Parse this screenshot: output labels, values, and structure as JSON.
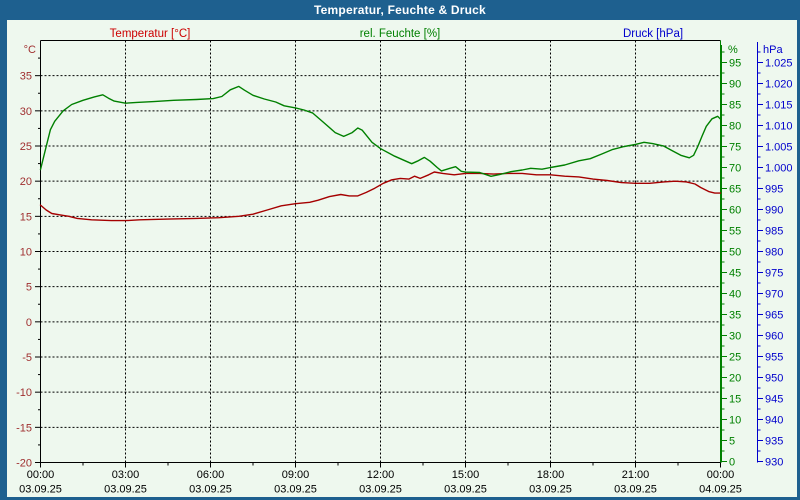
{
  "window": {
    "title": "Temperatur, Feuchte & Druck"
  },
  "header": {
    "temperature_label": "Temperatur [°C]",
    "humidity_label": "rel. Feuchte [%]",
    "pressure_label": "Druck [hPa]"
  },
  "colors": {
    "titlebar_bg": "#1e608f",
    "titlebar_text": "#ffffff",
    "window_bg": "#eef8ee",
    "frame": "#1e608f",
    "grid": "#000000",
    "axis_text": "#000000",
    "temperature": "#a50000",
    "temperature_header": "#cc0000",
    "temperature_ticks": "#a03030",
    "humidity": "#008000",
    "pressure": "#0000cc"
  },
  "axes": {
    "temperature": {
      "unit": "°C",
      "range": [
        -20,
        40
      ],
      "tick_values": [
        35,
        30,
        25,
        20,
        15,
        10,
        5,
        0,
        -5,
        -10,
        -15,
        -20
      ]
    },
    "humidity": {
      "unit": "%",
      "range": [
        0,
        100
      ],
      "tick_values": [
        95,
        90,
        85,
        80,
        75,
        70,
        65,
        60,
        55,
        50,
        45,
        40,
        35,
        30,
        25,
        20,
        15,
        10,
        5,
        0
      ]
    },
    "pressure": {
      "unit": "hPa",
      "range": [
        930,
        1030
      ],
      "tick_labels": [
        "1.025",
        "1.020",
        "1.015",
        "1.010",
        "1.005",
        "1.000",
        "995",
        "990",
        "985",
        "980",
        "975",
        "970",
        "965",
        "960",
        "955",
        "950",
        "945",
        "940",
        "935",
        "930"
      ],
      "tick_values": [
        1025,
        1020,
        1015,
        1010,
        1005,
        1000,
        995,
        990,
        985,
        980,
        975,
        970,
        965,
        960,
        955,
        950,
        945,
        940,
        935,
        930
      ]
    },
    "time": {
      "tick_times": [
        "00:00",
        "03:00",
        "06:00",
        "09:00",
        "12:00",
        "15:00",
        "18:00",
        "21:00",
        "00:00"
      ],
      "tick_dates": [
        "03.09.25",
        "03.09.25",
        "03.09.25",
        "03.09.25",
        "03.09.25",
        "03.09.25",
        "03.09.25",
        "03.09.25",
        "04.09.25"
      ]
    }
  },
  "chart_data": {
    "type": "line",
    "title": "Temperatur, Feuchte & Druck",
    "x_unit": "hours",
    "x_range": [
      0,
      24
    ],
    "x_tick_interval_hours": 3,
    "grid": true,
    "series": [
      {
        "id": "temperatur",
        "name": "Temperatur",
        "unit": "°C",
        "y_axis": "temperature",
        "axis_range": [
          -20,
          40
        ],
        "color": "#a50000",
        "points": [
          [
            0,
            16.6
          ],
          [
            0.2,
            15.9
          ],
          [
            0.4,
            15.4
          ],
          [
            0.7,
            15.2
          ],
          [
            1,
            15.0
          ],
          [
            1.3,
            14.7
          ],
          [
            1.8,
            14.5
          ],
          [
            2.5,
            14.4
          ],
          [
            3,
            14.4
          ],
          [
            3.5,
            14.5
          ],
          [
            4.5,
            14.6
          ],
          [
            5.5,
            14.7
          ],
          [
            6.3,
            14.8
          ],
          [
            7,
            15.0
          ],
          [
            7.5,
            15.3
          ],
          [
            8,
            15.9
          ],
          [
            8.5,
            16.5
          ],
          [
            9,
            16.8
          ],
          [
            9.5,
            17.0
          ],
          [
            9.8,
            17.3
          ],
          [
            10.2,
            17.8
          ],
          [
            10.6,
            18.1
          ],
          [
            10.9,
            17.9
          ],
          [
            11.2,
            17.9
          ],
          [
            11.5,
            18.4
          ],
          [
            11.8,
            19.0
          ],
          [
            12.1,
            19.7
          ],
          [
            12.4,
            20.2
          ],
          [
            12.7,
            20.4
          ],
          [
            13,
            20.3
          ],
          [
            13.2,
            20.7
          ],
          [
            13.4,
            20.4
          ],
          [
            13.7,
            20.9
          ],
          [
            13.9,
            21.3
          ],
          [
            14.2,
            21.1
          ],
          [
            14.6,
            20.9
          ],
          [
            15,
            21.1
          ],
          [
            15.5,
            21.1
          ],
          [
            16,
            21.0
          ],
          [
            16.5,
            21.1
          ],
          [
            17,
            21.1
          ],
          [
            17.5,
            20.9
          ],
          [
            18,
            20.9
          ],
          [
            18.5,
            20.7
          ],
          [
            19,
            20.6
          ],
          [
            19.5,
            20.3
          ],
          [
            20,
            20.1
          ],
          [
            20.5,
            19.8
          ],
          [
            21,
            19.7
          ],
          [
            21.5,
            19.7
          ],
          [
            22,
            19.9
          ],
          [
            22.4,
            20.0
          ],
          [
            22.8,
            19.9
          ],
          [
            23.1,
            19.6
          ],
          [
            23.3,
            19.1
          ],
          [
            23.6,
            18.5
          ],
          [
            23.8,
            18.3
          ],
          [
            24,
            18.3
          ]
        ]
      },
      {
        "id": "feuchte",
        "name": "rel. Feuchte",
        "unit": "%",
        "y_axis": "humidity",
        "axis_range": [
          0,
          100
        ],
        "color": "#008000",
        "points": [
          [
            0,
            69.5
          ],
          [
            0.2,
            75
          ],
          [
            0.35,
            79
          ],
          [
            0.5,
            81
          ],
          [
            0.8,
            83.5
          ],
          [
            1.1,
            85
          ],
          [
            1.5,
            86
          ],
          [
            1.9,
            86.8
          ],
          [
            2.2,
            87.3
          ],
          [
            2.4,
            86.5
          ],
          [
            2.6,
            85.8
          ],
          [
            3,
            85.3
          ],
          [
            3.4,
            85.5
          ],
          [
            4,
            85.7
          ],
          [
            4.7,
            86
          ],
          [
            5.5,
            86.2
          ],
          [
            6.1,
            86.4
          ],
          [
            6.4,
            86.9
          ],
          [
            6.7,
            88.5
          ],
          [
            7,
            89.3
          ],
          [
            7.2,
            88.4
          ],
          [
            7.5,
            87.2
          ],
          [
            7.9,
            86.3
          ],
          [
            8.3,
            85.6
          ],
          [
            8.6,
            84.7
          ],
          [
            9,
            84.2
          ],
          [
            9.3,
            83.7
          ],
          [
            9.6,
            83
          ],
          [
            10,
            80.7
          ],
          [
            10.4,
            78.3
          ],
          [
            10.7,
            77.4
          ],
          [
            11,
            78.3
          ],
          [
            11.2,
            79.4
          ],
          [
            11.35,
            78.9
          ],
          [
            11.7,
            76
          ],
          [
            12,
            74.5
          ],
          [
            12.5,
            72.7
          ],
          [
            12.9,
            71.5
          ],
          [
            13.1,
            70.9
          ],
          [
            13.3,
            71.5
          ],
          [
            13.55,
            72.4
          ],
          [
            13.75,
            71.5
          ],
          [
            14,
            70
          ],
          [
            14.15,
            69.2
          ],
          [
            14.45,
            69.8
          ],
          [
            14.65,
            70.2
          ],
          [
            14.85,
            69.1
          ],
          [
            15,
            68.9
          ],
          [
            15.5,
            68.8
          ],
          [
            15.9,
            67.9
          ],
          [
            16.2,
            68.3
          ],
          [
            16.6,
            69
          ],
          [
            17,
            69.4
          ],
          [
            17.3,
            69.8
          ],
          [
            17.7,
            69.6
          ],
          [
            18,
            70
          ],
          [
            18.5,
            70.6
          ],
          [
            19,
            71.6
          ],
          [
            19.4,
            72.1
          ],
          [
            19.8,
            73.2
          ],
          [
            20.2,
            74.3
          ],
          [
            20.6,
            75
          ],
          [
            21,
            75.5
          ],
          [
            21.3,
            76
          ],
          [
            21.6,
            75.7
          ],
          [
            22,
            75.1
          ],
          [
            22.3,
            74
          ],
          [
            22.6,
            72.9
          ],
          [
            22.9,
            72.3
          ],
          [
            23.05,
            72.9
          ],
          [
            23.2,
            75
          ],
          [
            23.35,
            77.5
          ],
          [
            23.5,
            79.8
          ],
          [
            23.7,
            81.6
          ],
          [
            23.9,
            82.2
          ],
          [
            24,
            81.5
          ]
        ]
      }
    ]
  }
}
